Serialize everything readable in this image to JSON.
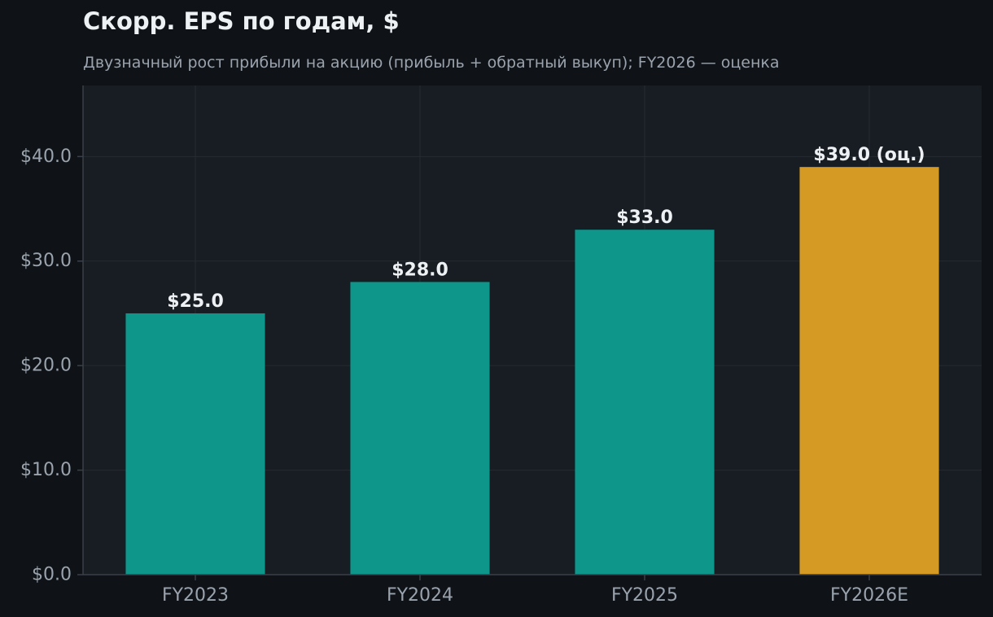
{
  "chart_data": {
    "type": "bar",
    "title": "Скорр. EPS по годам, $",
    "subtitle": "Двузначный рост прибыли на акцию (прибыль + обратный выкуп); FY2026 — оценка",
    "xlabel": "",
    "ylabel": "",
    "categories": [
      "FY2023",
      "FY2024",
      "FY2025",
      "FY2026E"
    ],
    "values": [
      25.0,
      28.0,
      33.0,
      39.0
    ],
    "data_labels": [
      "$25.0",
      "$28.0",
      "$33.0",
      "$39.0 (оц.)"
    ],
    "ylim": [
      0,
      46.8
    ],
    "yticks": [
      0,
      10,
      20,
      30,
      40
    ],
    "ytick_labels": [
      "$0.0",
      "$10.0",
      "$20.0",
      "$30.0",
      "$40.0"
    ],
    "grid": true,
    "legend": "none",
    "colors": {
      "actual": "#0f968b",
      "estimate": "#d49a24",
      "plot_background": "#181c23",
      "page_background": "#0f1317",
      "grid": "#262b33",
      "axis": "#3a4049",
      "tick_text": "#9aa3ad",
      "label_text": "#eef1f4"
    },
    "bar_color_keys": [
      "actual",
      "actual",
      "actual",
      "estimate"
    ]
  }
}
